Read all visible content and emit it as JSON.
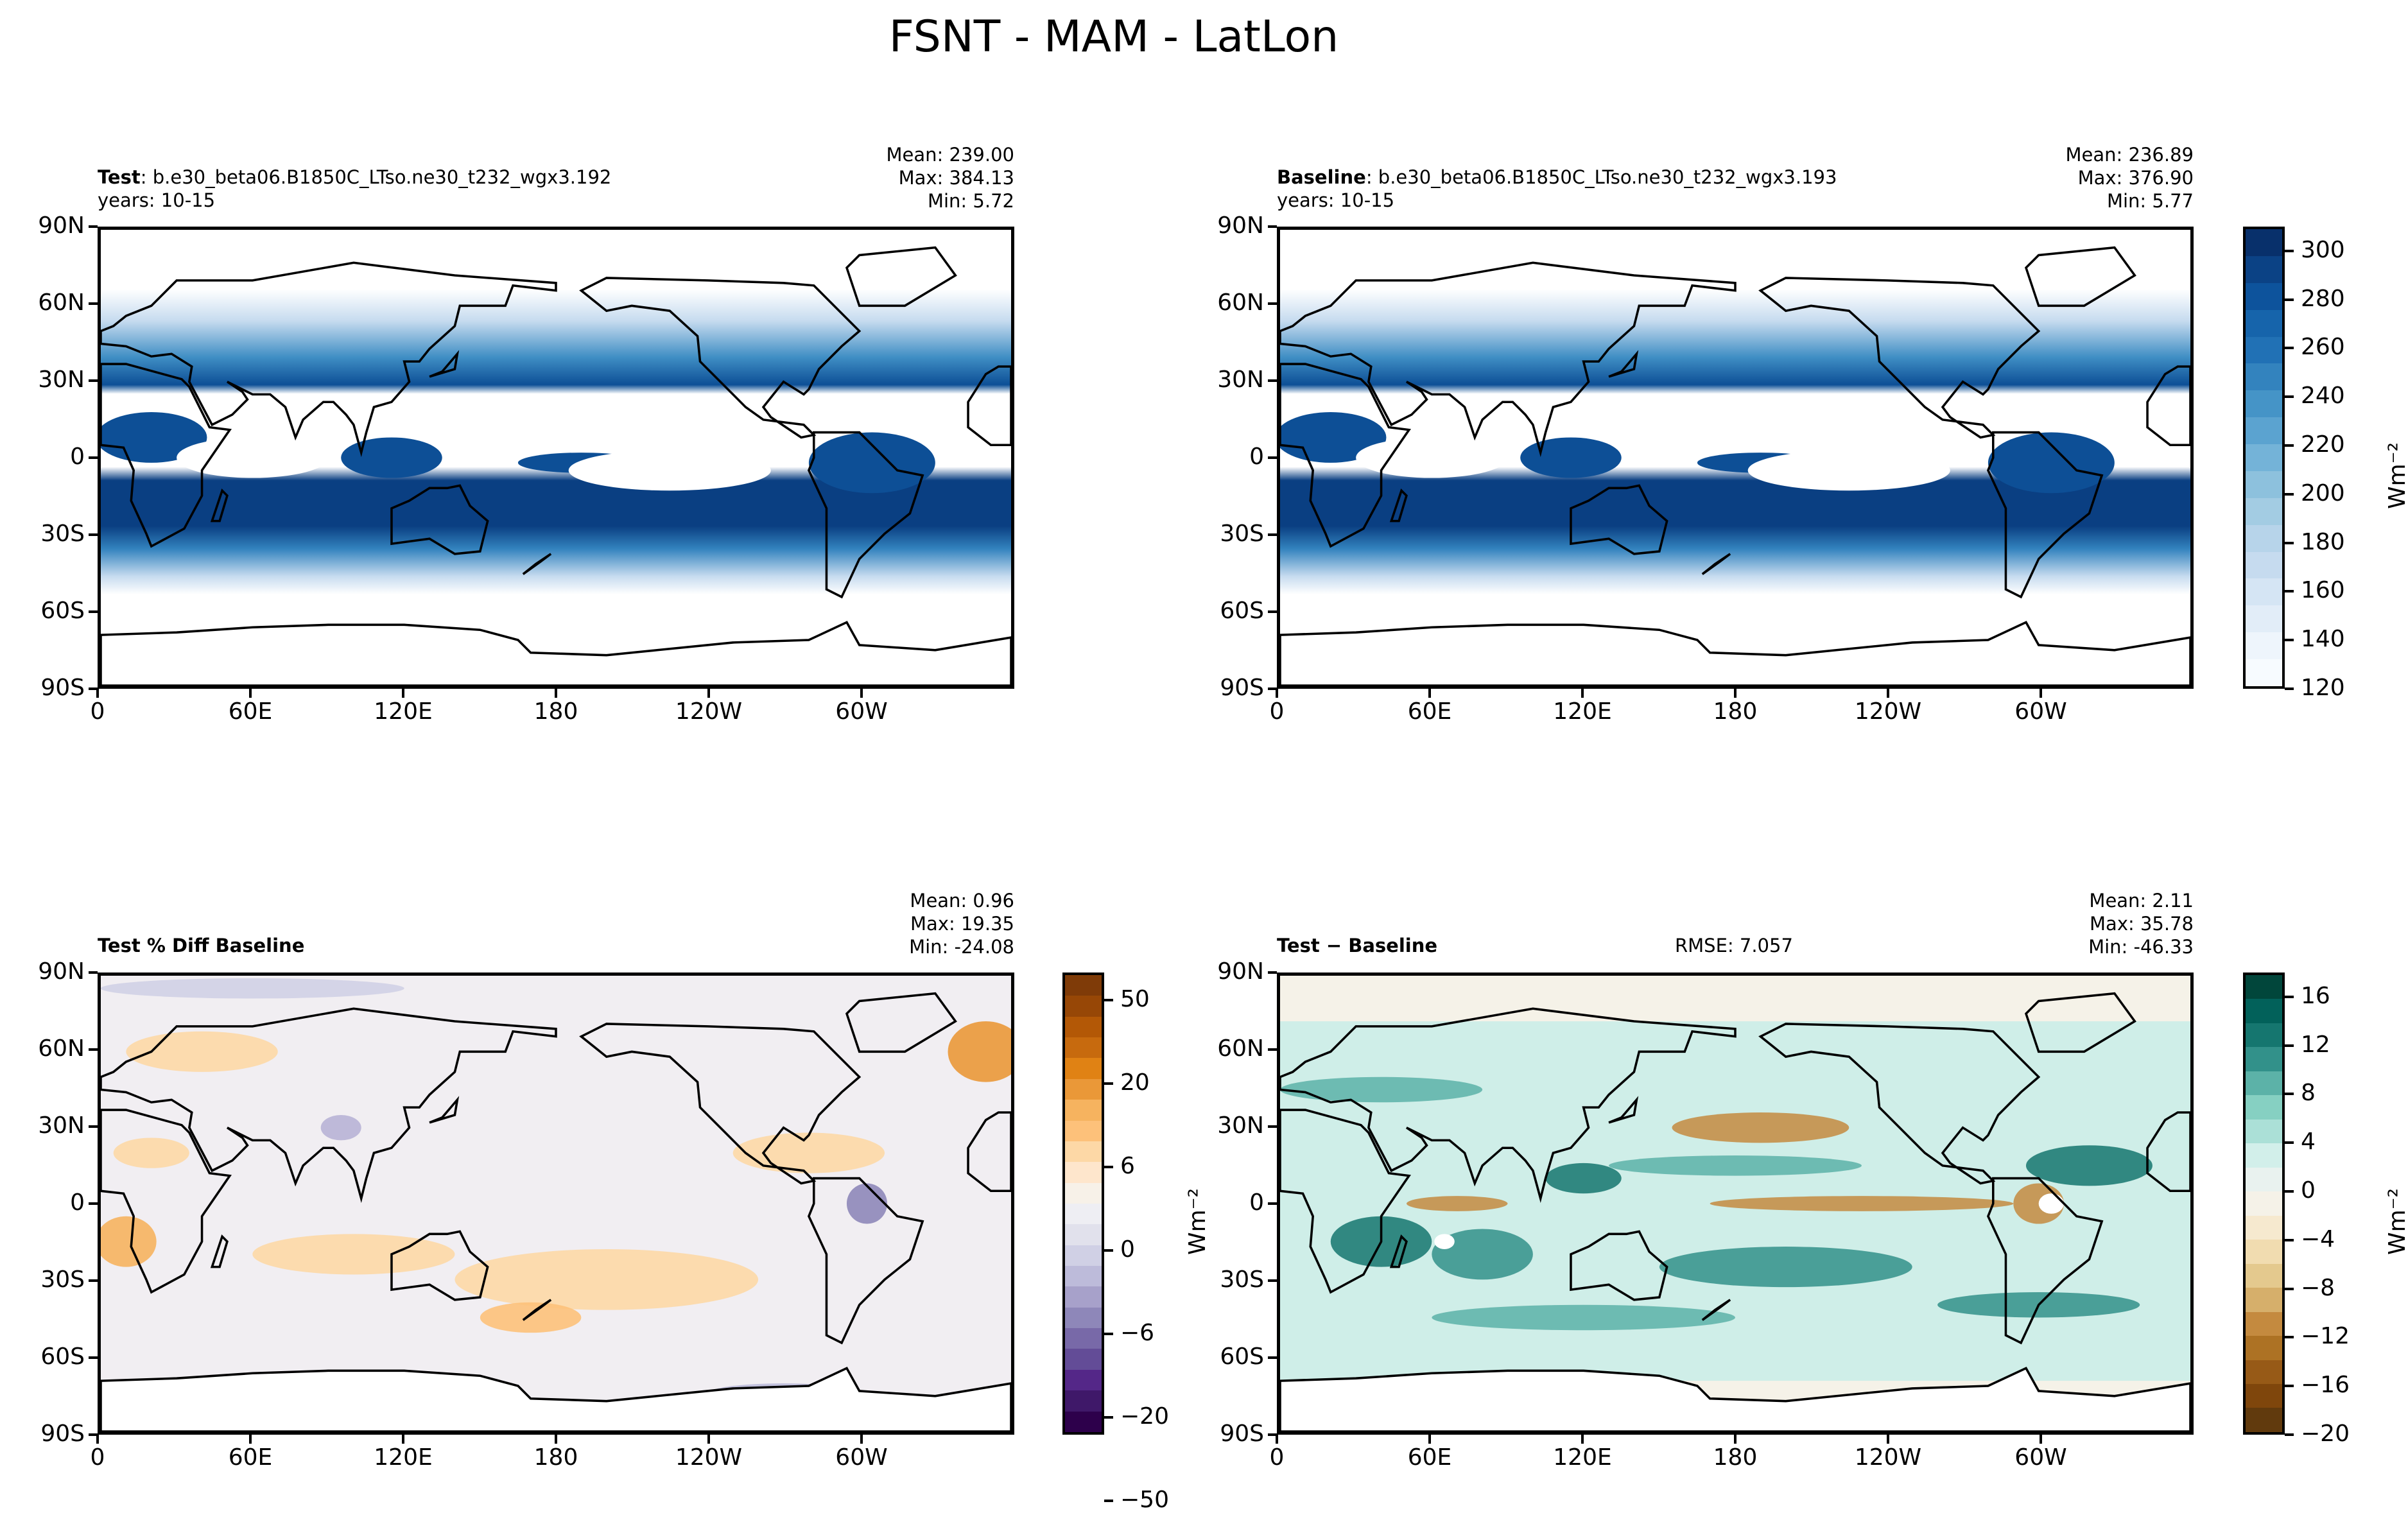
{
  "title": "FSNT - MAM - LatLon",
  "panels": [
    {
      "id": "test",
      "label_bold": "Test",
      "label_rest": ": b.e30_beta06.B1850C_LTso.ne30_t232_wgx3.192",
      "line2": "years: 10-15",
      "stats": [
        "Mean: 239.00",
        "Max: 384.13",
        "Min:  5.72"
      ]
    },
    {
      "id": "baseline",
      "label_bold": "Baseline",
      "label_rest": ": b.e30_beta06.B1850C_LTso.ne30_t232_wgx3.193",
      "line2": "years: 10-15",
      "stats": [
        "Mean: 236.89",
        "Max: 376.90",
        "Min:  5.77"
      ]
    },
    {
      "id": "pctdiff",
      "label_bold": "Test % Diff Baseline",
      "label_rest": "",
      "line2": "",
      "stats": [
        "Mean:  0.96",
        "Max: 19.35",
        "Min: -24.08"
      ]
    },
    {
      "id": "diff",
      "label_bold": "Test − Baseline",
      "label_rest": "",
      "line2": "",
      "rmse": "RMSE: 7.057",
      "stats": [
        "Mean:  2.11",
        "Max: 35.78",
        "Min: -46.33"
      ]
    }
  ],
  "lat_ticks": [
    "90N",
    "60N",
    "30N",
    "0",
    "30S",
    "60S",
    "90S"
  ],
  "lon_ticks": [
    "0",
    "60E",
    "120E",
    "180",
    "120W",
    "60W"
  ],
  "chart_data": [
    {
      "type": "heatmap",
      "title": "Test",
      "units": "Wm⁻²",
      "colorbar": {
        "ticks": [
          "300",
          "280",
          "260",
          "240",
          "220",
          "200",
          "180",
          "160",
          "140",
          "120"
        ],
        "range": [
          120,
          310
        ],
        "colors": [
          "#08306b",
          "#0b4285",
          "#0d539c",
          "#1664ab",
          "#2171b5",
          "#3383be",
          "#4594c7",
          "#5ba3d0",
          "#74b3d8",
          "#8dc1dd",
          "#a3cce3",
          "#b7d4ea",
          "#c6dbef",
          "#d5e5f4",
          "#e2edf8",
          "#eef5fc",
          "#f7fbff"
        ]
      }
    },
    {
      "type": "heatmap",
      "title": "Baseline",
      "units": "Wm⁻²"
    },
    {
      "type": "heatmap",
      "title": "Test % Diff Baseline",
      "units": "Wm⁻²",
      "colorbar": {
        "ticks": [
          "50",
          "20",
          "6",
          "0",
          "−6",
          "−20",
          "−50"
        ],
        "colors": [
          "#7f3b08",
          "#974706",
          "#b35806",
          "#c76a0e",
          "#e08214",
          "#ea9838",
          "#f6b35f",
          "#fdc17a",
          "#fdd8a6",
          "#fee6cc",
          "#f7f1e8",
          "#eeeef3",
          "#e1e1ec",
          "#d0d0e5",
          "#bdbbda",
          "#a7a1ca",
          "#8e87b9",
          "#7869a8",
          "#634c97",
          "#542788",
          "#3f1869",
          "#2d004b"
        ]
      }
    },
    {
      "type": "heatmap",
      "title": "Test − Baseline",
      "units": "Wm⁻²",
      "colorbar": {
        "ticks": [
          "16",
          "12",
          "8",
          "4",
          "0",
          "−4",
          "−8",
          "−12",
          "−16",
          "−20"
        ],
        "colors": [
          "#01463b",
          "#02615a",
          "#15766f",
          "#32918a",
          "#5cb2a8",
          "#86d0c2",
          "#abe0d7",
          "#d2efea",
          "#e9f2ef",
          "#f5f2e8",
          "#f6e9cf",
          "#f1dcb0",
          "#e4c98e",
          "#d6af6b",
          "#c48a3f",
          "#ad7224",
          "#975a17",
          "#7f460c",
          "#613a0d"
        ]
      }
    }
  ]
}
